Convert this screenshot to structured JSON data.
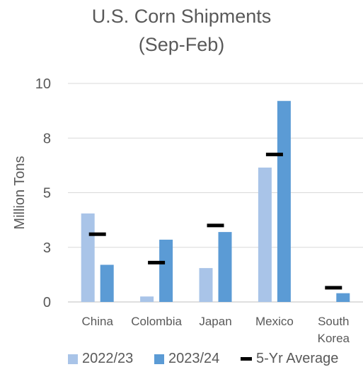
{
  "chart_data": {
    "type": "bar",
    "title_lines": [
      "U.S. Corn Shipments",
      "(Sep-Feb)"
    ],
    "ylabel": "Million Tons",
    "xlabel": "",
    "ylim": [
      0,
      10
    ],
    "yticks": [
      0,
      2.5,
      5,
      7.5,
      10
    ],
    "ytick_labels": [
      "0",
      "3",
      "5",
      "8",
      "10"
    ],
    "grid": true,
    "legend": "bottom",
    "categories": [
      "China",
      "Colombia",
      "Japan",
      "Mexico",
      "South Korea"
    ],
    "category_label_lines": [
      [
        "China"
      ],
      [
        "Colombia"
      ],
      [
        "Japan"
      ],
      [
        "Mexico"
      ],
      [
        "South",
        "Korea"
      ]
    ],
    "series": [
      {
        "name": "2022/23",
        "kind": "bar",
        "color": "#A9C4E8",
        "values": [
          4.05,
          0.25,
          1.55,
          6.15,
          0
        ]
      },
      {
        "name": "2023/24",
        "kind": "bar",
        "color": "#5B9BD5",
        "values": [
          1.7,
          2.85,
          3.2,
          9.2,
          0.4
        ]
      },
      {
        "name": "5-Yr Average",
        "kind": "marker",
        "color": "#000000",
        "values": [
          3.1,
          1.8,
          3.5,
          6.75,
          0.65
        ]
      }
    ]
  }
}
